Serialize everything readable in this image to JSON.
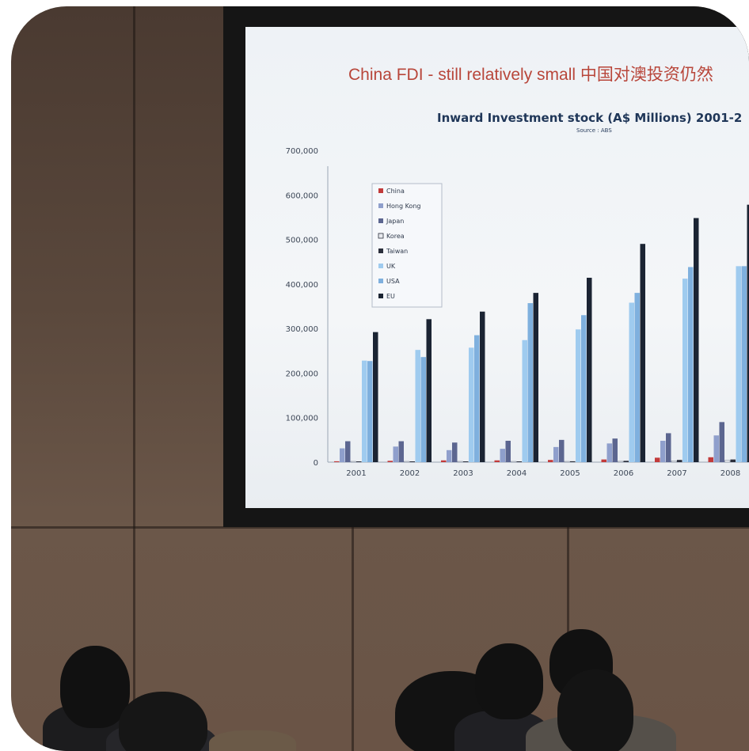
{
  "slide": {
    "title": "China FDI - still relatively small  中国对澳投资仍然"
  },
  "chart_data": {
    "type": "bar",
    "title": "Inward Investment stock (A$ Millions) 2001-2",
    "subtitle": "Source : ABS",
    "xlabel": "",
    "ylabel": "",
    "ylim": [
      0,
      700000
    ],
    "yticks": [
      "700,000",
      "600,000",
      "500,000",
      "400,000",
      "300,000",
      "200,000",
      "100,000",
      "0"
    ],
    "grid": false,
    "legend_position": "upper-left",
    "categories": [
      "2001",
      "2002",
      "2003",
      "2004",
      "2005",
      "2006",
      "2007",
      "2008"
    ],
    "series": [
      {
        "name": "China",
        "color": "#c23b3b",
        "values": [
          2000,
          3000,
          4000,
          4000,
          5000,
          6000,
          10000,
          11000
        ]
      },
      {
        "name": "Hong Kong",
        "color": "#8f9fcc",
        "values": [
          31000,
          35000,
          27000,
          30000,
          34000,
          42000,
          48000,
          60000
        ]
      },
      {
        "name": "Japan",
        "color": "#5c6690",
        "values": [
          47000,
          47000,
          44000,
          48000,
          50000,
          53000,
          65000,
          90000
        ]
      },
      {
        "name": "Korea",
        "color": "#e8eaee",
        "values": [
          1000,
          1000,
          1000,
          1000,
          1000,
          2000,
          3000,
          4000
        ]
      },
      {
        "name": "Taiwan",
        "color": "#2b2f3c",
        "values": [
          1000,
          1000,
          1000,
          1000,
          2000,
          3000,
          5000,
          6000
        ]
      },
      {
        "name": "UK",
        "color": "#9fcbef",
        "values": [
          228000,
          252000,
          257000,
          274000,
          298000,
          358000,
          412000,
          440000
        ]
      },
      {
        "name": "USA",
        "color": "#7fb0de",
        "values": [
          227000,
          236000,
          285000,
          357000,
          330000,
          380000,
          438000,
          440000
        ]
      },
      {
        "name": "EU",
        "color": "#1b2433",
        "values": [
          292000,
          321000,
          338000,
          380000,
          414000,
          490000,
          548000,
          578000
        ]
      }
    ]
  },
  "colors": {
    "title_red": "#b8463a",
    "chart_title_blue": "#1f3658",
    "projector_bezel": "#151515",
    "wall": "#5a483c"
  }
}
